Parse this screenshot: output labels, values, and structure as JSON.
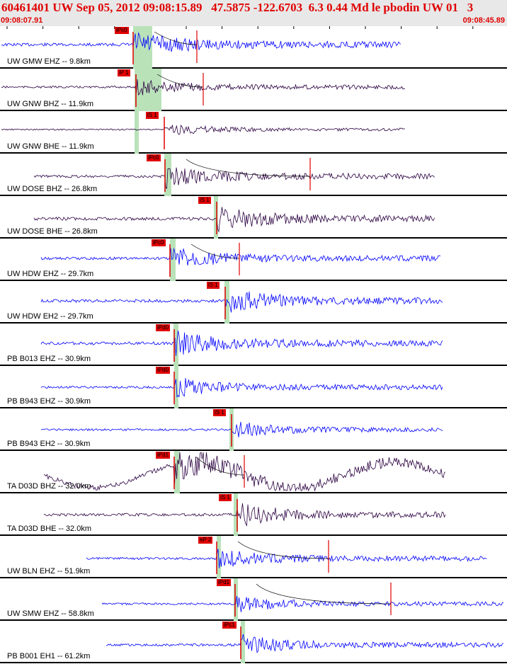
{
  "header": {
    "title": "60461401 UW Sep 05, 2012 09:08:15.89   47.5875 -122.6703  6.3 0.44 Md le pbodin UW 01   3",
    "time_start": "09:08:07.91",
    "time_end": "09:08:45.89"
  },
  "colors": {
    "pick": "#e00000",
    "window": "#b9e2b9",
    "trace_blue": "#0000ff",
    "trace_dark": "#2a0040",
    "header_bg": "#e8e8e8"
  },
  "traces": [
    {
      "label": "UW GMW EHZ -- 9.8km",
      "pick": "iPc0",
      "color": "blue"
    },
    {
      "label": "UW GNW BHZ -- 11.9km",
      "pick": "iP 1",
      "color": "dark"
    },
    {
      "label": "UW GNW BHE -- 11.9km",
      "pick": "iS 1",
      "color": "dark"
    },
    {
      "label": "UW DOSE BHZ -- 26.8km",
      "pick": "iPc0",
      "color": "dark"
    },
    {
      "label": "UW DOSE BHE -- 26.8km",
      "pick": "iS 1",
      "color": "dark"
    },
    {
      "label": "UW HDW EHZ -- 29.7km",
      "pick": "iPc0",
      "color": "blue"
    },
    {
      "label": "UW HDW EH2 -- 29.7km",
      "pick": "iS 1",
      "color": "blue"
    },
    {
      "label": "PB B013 EHZ -- 30.9km",
      "pick": "iPd0",
      "color": "blue"
    },
    {
      "label": "PB B943 EHZ -- 30.9km",
      "pick": "iPd0",
      "color": "blue"
    },
    {
      "label": "PB B943 EH2 -- 30.9km",
      "pick": "iS 1",
      "color": "blue"
    },
    {
      "label": "TA D03D BHZ -- 32.0km",
      "pick": "iPd1",
      "color": "dark"
    },
    {
      "label": "TA D03D BHE -- 32.0km",
      "pick": "iS 1",
      "color": "dark"
    },
    {
      "label": "UW BLN EHZ -- 51.9km",
      "pick": "eP 2",
      "color": "blue"
    },
    {
      "label": "UW SMW EHZ -- 58.8km",
      "pick": "iPd1",
      "color": "blue"
    },
    {
      "label": "PB B001 EH1 -- 61.2km",
      "pick": "iPc1",
      "color": "blue"
    }
  ]
}
